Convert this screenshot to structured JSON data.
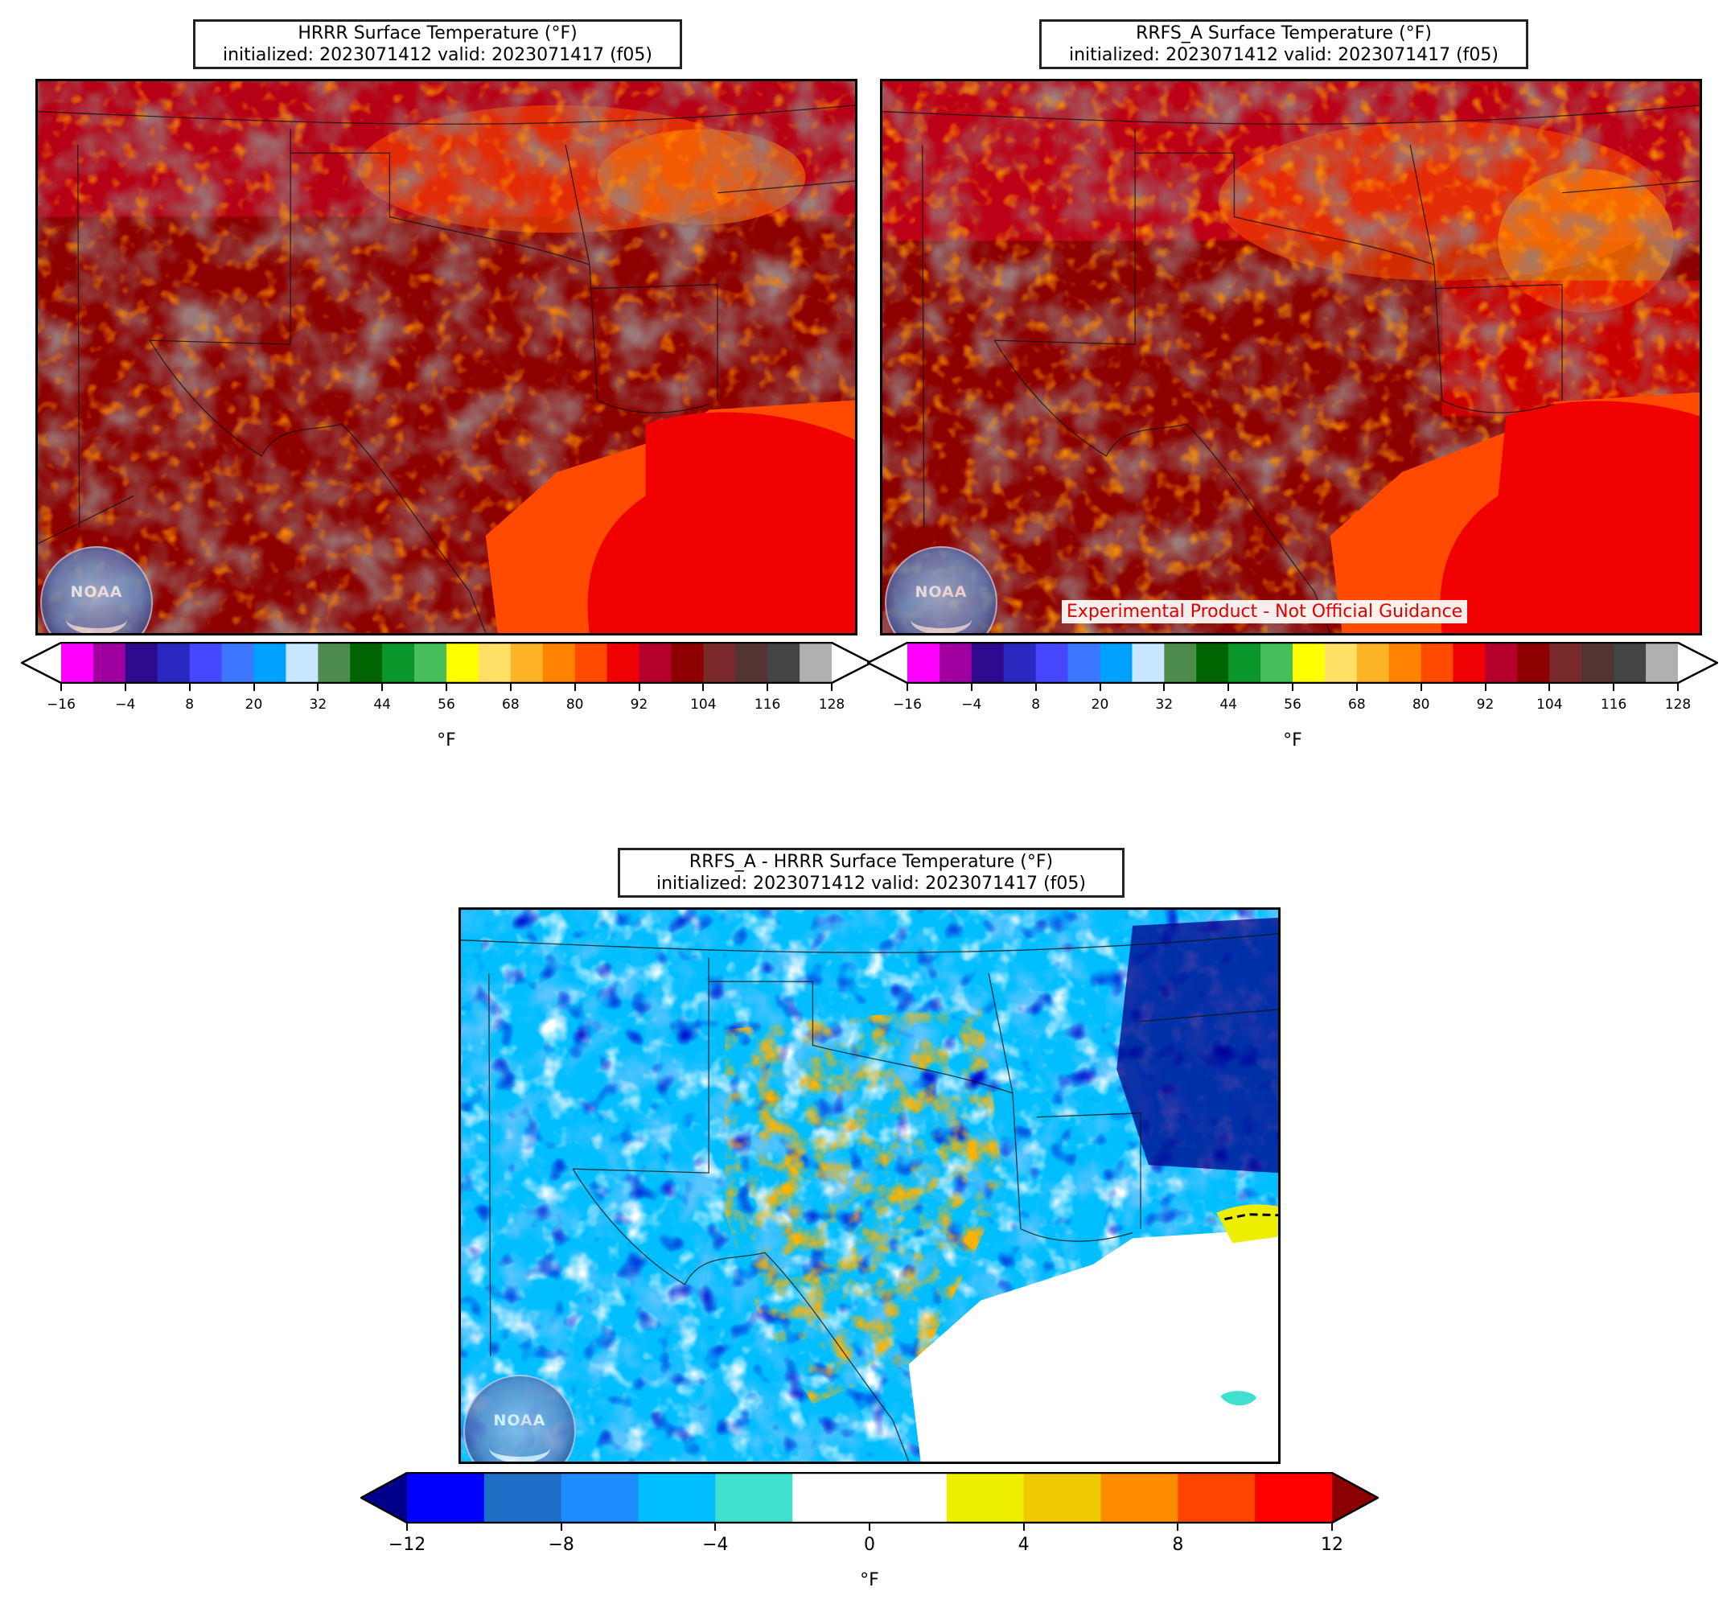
{
  "panels": {
    "hrrr": {
      "title_line1": "HRRR Surface Temperature (°F)",
      "title_line2": "initialized: 2023071412 valid: 2023071417 (f05)"
    },
    "rrfs": {
      "title_line1": "RRFS_A Surface Temperature (°F)",
      "title_line2": "initialized: 2023071412 valid: 2023071417 (f05)",
      "disclaimer": "Experimental Product - Not Official Guidance"
    },
    "diff": {
      "title_line1": "RRFS_A - HRRR Surface Temperature (°F)",
      "title_line2": "initialized: 2023071412 valid: 2023071417 (f05)"
    }
  },
  "logo_text": "NOAA",
  "temp_colorbar": {
    "unit": "°F",
    "tick_labels": [
      "−16",
      "−4",
      "8",
      "20",
      "32",
      "44",
      "56",
      "68",
      "80",
      "92",
      "104",
      "116",
      "128"
    ],
    "colors": [
      "#ff00ff",
      "#a000a0",
      "#2e0a8c",
      "#2828c0",
      "#4646ff",
      "#3c78ff",
      "#00a0ff",
      "#c8e6ff",
      "#4e8c4e",
      "#006400",
      "#0a9628",
      "#46be5a",
      "#ffff00",
      "#ffe066",
      "#ffb428",
      "#ff8200",
      "#ff4a00",
      "#f00000",
      "#b4002d",
      "#8c0000",
      "#7a2a2a",
      "#553434",
      "#444444",
      "#b0b0b0"
    ],
    "extend_min_color": "#ffffff",
    "extend_max_color": "#ffffff"
  },
  "diff_colorbar": {
    "unit": "°F",
    "tick_labels": [
      "−12",
      "−8",
      "−4",
      "0",
      "4",
      "8",
      "12"
    ],
    "colors": [
      "#0000ff",
      "#1e6ec8",
      "#1e8cff",
      "#00beff",
      "#40e0d0",
      "#ffffff",
      "#ffffff",
      "#eeee00",
      "#eec800",
      "#ff8c00",
      "#ff4500",
      "#ff0000"
    ],
    "extend_min_color": "#00008b",
    "extend_max_color": "#8b0000"
  }
}
